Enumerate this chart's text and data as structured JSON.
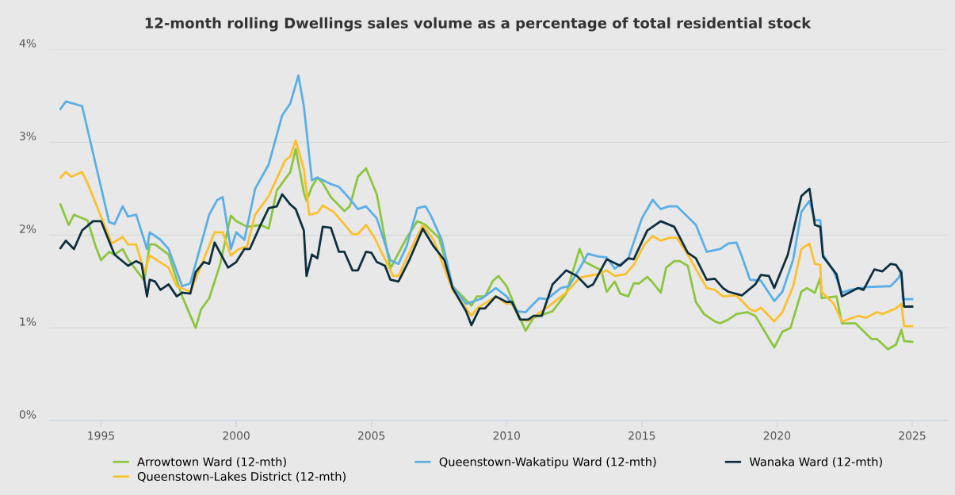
{
  "chart_data": {
    "type": "line",
    "title": "12-month rolling Dwellings sales volume as a percentage of total residential stock",
    "xlim": [
      1993.1,
      2026.3
    ],
    "xticks": [
      1995,
      2000,
      2005,
      2010,
      2015,
      2020,
      2025
    ],
    "ylim": [
      0,
      4
    ],
    "yticks": [
      {
        "value": 0,
        "label": "0%"
      },
      {
        "value": 1,
        "label": "1%"
      },
      {
        "value": 2,
        "label": "2%"
      },
      {
        "value": 3,
        "label": "3%"
      },
      {
        "value": 4,
        "label": "4%"
      }
    ],
    "grid": "y",
    "legend": "bottom",
    "marker": "none",
    "line_style": "solid",
    "series": [
      {
        "name": "Arrowtown Ward (12-mth)",
        "color": "#8cc63f",
        "x": [
          1993.5,
          1993.8,
          1994.0,
          1994.5,
          1994.8,
          1995.0,
          1995.3,
          1995.5,
          1995.8,
          1996.0,
          1996.6,
          1996.8,
          1997.0,
          1997.5,
          1998.0,
          1998.5,
          1998.7,
          1999.0,
          1999.4,
          1999.8,
          2000.0,
          2000.4,
          2000.9,
          2001.2,
          2001.5,
          2002.0,
          2002.2,
          2002.5,
          2002.6,
          2002.8,
          2003.0,
          2003.2,
          2003.5,
          2004.0,
          2004.2,
          2004.5,
          2004.8,
          2005.2,
          2005.7,
          2006.3,
          2006.7,
          2007.0,
          2007.5,
          2008.0,
          2008.7,
          2008.9,
          2009.2,
          2009.5,
          2009.7,
          2010.0,
          2010.4,
          2010.7,
          2011.0,
          2011.7,
          2012.2,
          2012.7,
          2012.9,
          2013.3,
          2013.5,
          2013.7,
          2014.0,
          2014.2,
          2014.5,
          2014.7,
          2014.9,
          2015.2,
          2015.4,
          2015.7,
          2015.9,
          2016.2,
          2016.4,
          2016.7,
          2017.0,
          2017.3,
          2017.7,
          2017.9,
          2018.2,
          2018.5,
          2018.9,
          2019.2,
          2019.9,
          2020.2,
          2020.5,
          2020.9,
          2021.1,
          2021.4,
          2021.6,
          2021.65,
          2022.2,
          2022.4,
          2022.9,
          2023.5,
          2023.7,
          2024.1,
          2024.4,
          2024.6,
          2024.7,
          2025.0
        ],
        "values": [
          2.33,
          2.11,
          2.22,
          2.16,
          1.88,
          1.73,
          1.82,
          1.79,
          1.85,
          1.74,
          1.51,
          1.9,
          1.9,
          1.79,
          1.34,
          1.0,
          1.2,
          1.32,
          1.68,
          2.21,
          2.15,
          2.09,
          2.11,
          2.07,
          2.48,
          2.68,
          2.93,
          2.46,
          2.37,
          2.52,
          2.62,
          2.56,
          2.41,
          2.26,
          2.31,
          2.63,
          2.72,
          2.44,
          1.64,
          1.97,
          2.15,
          2.11,
          1.97,
          1.45,
          1.24,
          1.34,
          1.34,
          1.51,
          1.56,
          1.45,
          1.17,
          0.97,
          1.11,
          1.18,
          1.37,
          1.85,
          1.71,
          1.65,
          1.62,
          1.39,
          1.5,
          1.37,
          1.34,
          1.48,
          1.48,
          1.55,
          1.49,
          1.38,
          1.65,
          1.72,
          1.72,
          1.67,
          1.28,
          1.15,
          1.07,
          1.05,
          1.09,
          1.15,
          1.17,
          1.13,
          0.79,
          0.96,
          1.0,
          1.39,
          1.43,
          1.38,
          1.54,
          1.32,
          1.34,
          1.05,
          1.05,
          0.88,
          0.88,
          0.77,
          0.82,
          0.98,
          0.86,
          0.85
        ]
      },
      {
        "name": "Queenstown-Lakes District (12-mth)",
        "color": "#fbc02d",
        "x": [
          1993.5,
          1993.7,
          1993.9,
          1994.3,
          1994.5,
          1995.0,
          1995.4,
          1995.8,
          1996.0,
          1996.3,
          1996.6,
          1996.8,
          1997.5,
          1997.8,
          1998.3,
          1998.8,
          1999.2,
          1999.5,
          1999.8,
          2000.1,
          2000.4,
          2000.7,
          2001.2,
          2001.8,
          2002.0,
          2002.2,
          2002.5,
          2002.7,
          2003.0,
          2003.2,
          2003.6,
          2003.9,
          2004.3,
          2004.5,
          2004.8,
          2005.1,
          2005.8,
          2006.0,
          2006.4,
          2006.9,
          2007.3,
          2008.0,
          2008.7,
          2008.9,
          2009.6,
          2010.0,
          2010.2,
          2010.5,
          2010.8,
          2011.5,
          2012.2,
          2012.7,
          2013.0,
          2013.4,
          2013.7,
          2014.0,
          2014.4,
          2014.7,
          2015.1,
          2015.4,
          2015.7,
          2016.0,
          2016.3,
          2016.7,
          2017.4,
          2017.7,
          2018.0,
          2018.5,
          2019.0,
          2019.2,
          2019.4,
          2019.9,
          2020.2,
          2020.6,
          2020.9,
          2021.2,
          2021.4,
          2021.6,
          2021.65,
          2022.1,
          2022.4,
          2023.0,
          2023.3,
          2023.7,
          2023.9,
          2024.4,
          2024.6,
          2024.7,
          2025.0
        ],
        "values": [
          2.62,
          2.68,
          2.63,
          2.68,
          2.56,
          2.2,
          1.91,
          1.98,
          1.9,
          1.9,
          1.6,
          1.78,
          1.65,
          1.45,
          1.39,
          1.74,
          2.03,
          2.03,
          1.78,
          1.85,
          1.88,
          2.22,
          2.42,
          2.8,
          2.85,
          3.02,
          2.71,
          2.22,
          2.24,
          2.32,
          2.25,
          2.15,
          2.01,
          2.01,
          2.11,
          1.98,
          1.56,
          1.56,
          1.81,
          2.11,
          1.95,
          1.41,
          1.13,
          1.21,
          1.34,
          1.26,
          1.26,
          1.09,
          1.08,
          1.22,
          1.38,
          1.54,
          1.56,
          1.58,
          1.62,
          1.56,
          1.58,
          1.68,
          1.9,
          1.99,
          1.94,
          1.97,
          1.97,
          1.79,
          1.43,
          1.41,
          1.34,
          1.35,
          1.2,
          1.18,
          1.22,
          1.07,
          1.17,
          1.45,
          1.85,
          1.91,
          1.69,
          1.68,
          1.39,
          1.26,
          1.07,
          1.13,
          1.11,
          1.17,
          1.15,
          1.21,
          1.26,
          1.02,
          1.02
        ]
      },
      {
        "name": "Queenstown-Wakatipu Ward (12-mth)",
        "color": "#5aafe6",
        "x": [
          1993.5,
          1993.7,
          1994.3,
          1995.3,
          1995.5,
          1995.8,
          1996.0,
          1996.3,
          1996.7,
          1996.8,
          1997.2,
          1997.5,
          1998.0,
          1998.3,
          1999.0,
          1999.3,
          1999.5,
          1999.8,
          2000.0,
          2000.3,
          2000.7,
          2001.2,
          2001.7,
          2002.0,
          2002.3,
          2002.5,
          2002.8,
          2003.0,
          2003.5,
          2003.8,
          2004.2,
          2004.5,
          2004.8,
          2005.2,
          2005.7,
          2006.0,
          2006.3,
          2006.7,
          2007.0,
          2007.2,
          2007.6,
          2008.0,
          2008.5,
          2009.1,
          2009.6,
          2010.0,
          2010.4,
          2010.7,
          2011.2,
          2011.5,
          2012.0,
          2012.3,
          2012.7,
          2013.0,
          2013.4,
          2013.7,
          2014.0,
          2014.5,
          2015.0,
          2015.4,
          2015.7,
          2016.0,
          2016.3,
          2017.0,
          2017.4,
          2017.9,
          2018.2,
          2018.5,
          2018.7,
          2019.0,
          2019.4,
          2019.9,
          2020.2,
          2020.6,
          2020.9,
          2021.2,
          2021.4,
          2021.6,
          2021.7,
          2022.1,
          2022.4,
          2022.7,
          2023.3,
          2024.2,
          2024.5,
          2024.6,
          2024.65,
          2025.0
        ],
        "values": [
          3.36,
          3.44,
          3.39,
          2.14,
          2.12,
          2.31,
          2.2,
          2.22,
          1.85,
          2.03,
          1.95,
          1.85,
          1.45,
          1.48,
          2.22,
          2.38,
          2.41,
          1.85,
          2.03,
          1.95,
          2.5,
          2.76,
          3.29,
          3.42,
          3.72,
          3.39,
          2.59,
          2.62,
          2.55,
          2.52,
          2.39,
          2.28,
          2.31,
          2.18,
          1.73,
          1.69,
          1.88,
          2.29,
          2.31,
          2.21,
          1.95,
          1.45,
          1.26,
          1.32,
          1.43,
          1.34,
          1.18,
          1.17,
          1.32,
          1.31,
          1.43,
          1.45,
          1.64,
          1.8,
          1.77,
          1.76,
          1.64,
          1.75,
          2.18,
          2.38,
          2.28,
          2.31,
          2.31,
          2.11,
          1.82,
          1.85,
          1.91,
          1.92,
          1.77,
          1.52,
          1.51,
          1.29,
          1.39,
          1.74,
          2.25,
          2.37,
          2.16,
          2.16,
          1.79,
          1.61,
          1.38,
          1.41,
          1.44,
          1.45,
          1.54,
          1.62,
          1.31,
          1.31
        ]
      },
      {
        "name": "Wanaka Ward (12-mth)",
        "color": "#0e2f3f",
        "x": [
          1993.5,
          1993.7,
          1994.0,
          1994.3,
          1994.7,
          1995.0,
          1995.5,
          1996.0,
          1996.3,
          1996.5,
          1996.7,
          1996.8,
          1997.0,
          1997.2,
          1997.5,
          1997.8,
          1998.0,
          1998.3,
          1998.5,
          1998.8,
          1999.0,
          1999.2,
          1999.7,
          2000.0,
          2000.3,
          2000.5,
          2000.9,
          2001.2,
          2001.5,
          2001.7,
          2002.0,
          2002.2,
          2002.5,
          2002.6,
          2002.8,
          2003.0,
          2003.2,
          2003.5,
          2003.8,
          2004.0,
          2004.3,
          2004.5,
          2004.8,
          2005.0,
          2005.2,
          2005.5,
          2005.7,
          2006.0,
          2006.4,
          2006.9,
          2007.3,
          2007.7,
          2008.0,
          2008.5,
          2008.7,
          2009.0,
          2009.2,
          2009.6,
          2010.0,
          2010.2,
          2010.5,
          2010.8,
          2011.0,
          2011.3,
          2011.7,
          2012.2,
          2012.6,
          2013.0,
          2013.2,
          2013.7,
          2014.2,
          2014.5,
          2014.7,
          2015.2,
          2015.7,
          2016.2,
          2016.7,
          2017.0,
          2017.4,
          2017.7,
          2018.0,
          2018.2,
          2018.7,
          2019.2,
          2019.4,
          2019.7,
          2019.9,
          2020.4,
          2020.9,
          2021.2,
          2021.4,
          2021.6,
          2021.7,
          2022.2,
          2022.4,
          2023.0,
          2023.2,
          2023.6,
          2023.9,
          2024.2,
          2024.4,
          2024.6,
          2024.7,
          2025.0
        ],
        "values": [
          1.86,
          1.94,
          1.85,
          2.05,
          2.15,
          2.15,
          1.79,
          1.67,
          1.72,
          1.69,
          1.34,
          1.52,
          1.5,
          1.41,
          1.47,
          1.34,
          1.38,
          1.37,
          1.6,
          1.71,
          1.69,
          1.92,
          1.65,
          1.71,
          1.85,
          1.85,
          2.11,
          2.29,
          2.31,
          2.44,
          2.33,
          2.28,
          2.05,
          1.56,
          1.79,
          1.75,
          2.09,
          2.08,
          1.82,
          1.82,
          1.62,
          1.62,
          1.82,
          1.81,
          1.71,
          1.67,
          1.52,
          1.5,
          1.73,
          2.07,
          1.88,
          1.73,
          1.43,
          1.18,
          1.03,
          1.21,
          1.21,
          1.34,
          1.28,
          1.28,
          1.09,
          1.09,
          1.13,
          1.13,
          1.47,
          1.62,
          1.56,
          1.44,
          1.47,
          1.74,
          1.67,
          1.75,
          1.74,
          2.05,
          2.15,
          2.09,
          1.81,
          1.75,
          1.52,
          1.53,
          1.43,
          1.39,
          1.35,
          1.47,
          1.57,
          1.56,
          1.43,
          1.79,
          2.42,
          2.5,
          2.11,
          2.09,
          1.77,
          1.58,
          1.34,
          1.43,
          1.41,
          1.63,
          1.61,
          1.69,
          1.68,
          1.59,
          1.23,
          1.23
        ]
      }
    ]
  }
}
